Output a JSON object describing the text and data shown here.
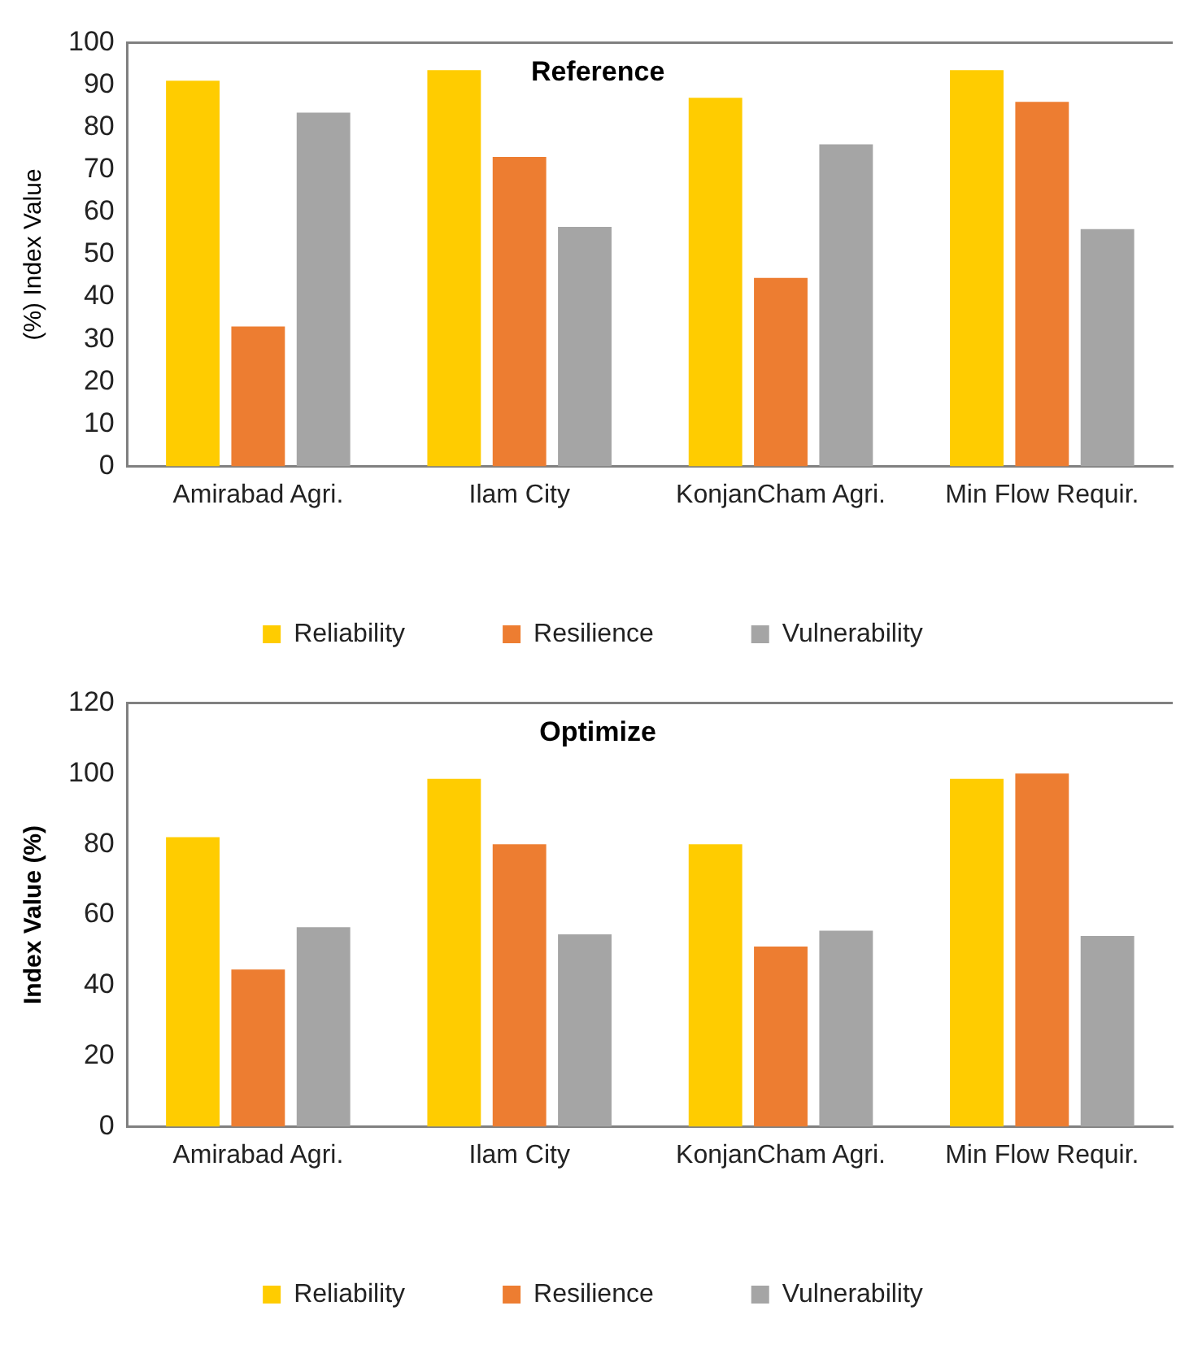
{
  "chart_data": [
    {
      "type": "bar",
      "title": "Reference",
      "ylabel": "(%) Index Value",
      "categories": [
        "Amirabad Agri.",
        "Ilam City",
        "KonjanCham Agri.",
        "Min Flow Requir."
      ],
      "series": [
        {
          "name": "Reliability",
          "color": "#ffcc00",
          "values": [
            91,
            93.5,
            87,
            93.5
          ]
        },
        {
          "name": "Resilience",
          "color": "#ed7d31",
          "values": [
            33,
            73,
            44.5,
            86
          ]
        },
        {
          "name": "Vulnerability",
          "color": "#a5a5a5",
          "values": [
            83.5,
            56.5,
            76,
            56
          ]
        }
      ],
      "ylim": [
        0,
        100
      ],
      "yticks": [
        0,
        10,
        20,
        30,
        40,
        50,
        60,
        70,
        80,
        90,
        100
      ],
      "grid": false,
      "legend": "bottom"
    },
    {
      "type": "bar",
      "title": "Optimize",
      "ylabel": "Index Value (%)",
      "categories": [
        "Amirabad Agri.",
        "Ilam City",
        "KonjanCham Agri.",
        "Min Flow Requir."
      ],
      "series": [
        {
          "name": "Reliability",
          "color": "#ffcc00",
          "values": [
            82,
            98.5,
            80,
            98.5
          ]
        },
        {
          "name": "Resilience",
          "color": "#ed7d31",
          "values": [
            44.5,
            80,
            51,
            100
          ]
        },
        {
          "name": "Vulnerability",
          "color": "#a5a5a5",
          "values": [
            56.5,
            54.5,
            55.5,
            54
          ]
        }
      ],
      "ylim": [
        0,
        120
      ],
      "yticks": [
        0,
        20,
        40,
        60,
        80,
        100,
        120
      ],
      "grid": false,
      "legend": "bottom"
    }
  ]
}
